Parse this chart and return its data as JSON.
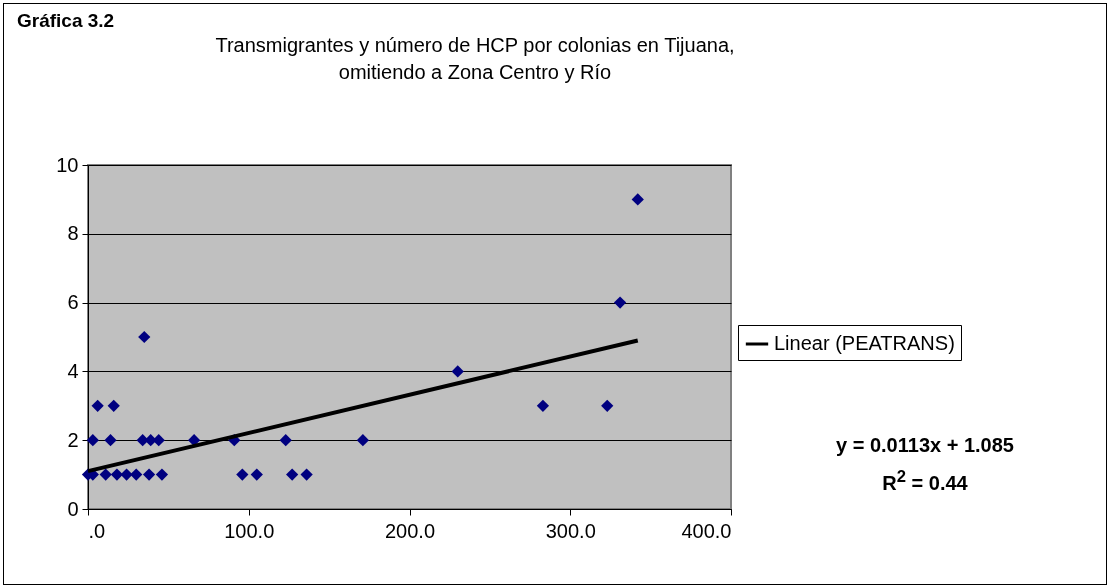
{
  "chart_data": {
    "type": "scatter",
    "title": "Gráfica 3.2",
    "subtitle": "Transmigrantes y número de HCP por colonias en Tijuana, omitiendo a Zona Centro y Río",
    "xlim": [
      0,
      400
    ],
    "xticks": [
      {
        "value": 0,
        "label": ".0"
      },
      {
        "value": 100,
        "label": "100.0"
      },
      {
        "value": 200,
        "label": "200.0"
      },
      {
        "value": 300,
        "label": "300.0"
      },
      {
        "value": 400,
        "label": "400.0"
      }
    ],
    "ylim": [
      0,
      10
    ],
    "yticks": [
      0,
      2,
      4,
      6,
      8,
      10
    ],
    "grid": "y",
    "legend": "right",
    "series": [
      {
        "color": "#000080",
        "marker": "diamond",
        "x": [
          0,
          3,
          11,
          18,
          24,
          30,
          38,
          46,
          96,
          105,
          127,
          136,
          3,
          14,
          34,
          39,
          44,
          66,
          91,
          123,
          171,
          6,
          16,
          283,
          323,
          230,
          35,
          331,
          342
        ],
        "values": [
          1,
          1,
          1,
          1,
          1,
          1,
          1,
          1,
          1,
          1,
          1,
          1,
          2,
          2,
          2,
          2,
          2,
          2,
          2,
          2,
          2,
          3,
          3,
          3,
          3,
          4,
          5,
          6,
          9
        ]
      },
      {
        "type": "line",
        "name": "Linear (PEATRANS)",
        "color": "#000000",
        "line_style": "solid",
        "x": [
          0,
          342
        ],
        "values": [
          1.1,
          4.9
        ]
      }
    ],
    "annotations": [
      "y = 0.0113x + 1.085",
      "R$^{2}$ = 0.44"
    ]
  }
}
